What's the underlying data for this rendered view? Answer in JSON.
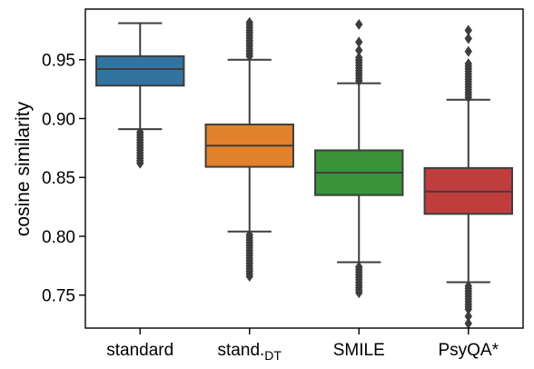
{
  "chart_data": {
    "type": "box",
    "ylabel": "cosine similarity",
    "xlabel": "",
    "ylim": [
      0.722,
      0.993
    ],
    "yticks": [
      0.75,
      0.8,
      0.85,
      0.9,
      0.95
    ],
    "ytick_labels": [
      "0.75",
      "0.80",
      "0.85",
      "0.90",
      "0.95"
    ],
    "grid": false,
    "categories": [
      {
        "label": "standard",
        "subscript": ""
      },
      {
        "label": "stand.",
        "subscript": "DT"
      },
      {
        "label": "SMILE",
        "subscript": ""
      },
      {
        "label": "PsyQA*",
        "subscript": ""
      }
    ],
    "boxes": [
      {
        "color": "#3274a1",
        "whisker_low": 0.891,
        "q1": 0.928,
        "median": 0.942,
        "q3": 0.953,
        "whisker_high": 0.981,
        "fliers_low_range": [
          0.862,
          0.889
        ],
        "fliers_high_range": null,
        "fliers_extra": []
      },
      {
        "color": "#e1812c",
        "whisker_low": 0.804,
        "q1": 0.859,
        "median": 0.877,
        "q3": 0.895,
        "whisker_high": 0.95,
        "fliers_low_range": [
          0.766,
          0.802
        ],
        "fliers_high_range": [
          0.953,
          0.983
        ],
        "fliers_extra": []
      },
      {
        "color": "#3a923a",
        "whisker_low": 0.778,
        "q1": 0.835,
        "median": 0.854,
        "q3": 0.873,
        "whisker_high": 0.93,
        "fliers_low_range": [
          0.752,
          0.776
        ],
        "fliers_high_range": [
          0.932,
          0.952
        ],
        "fliers_extra": [
          0.958,
          0.965,
          0.98
        ]
      },
      {
        "color": "#c03d3e",
        "whisker_low": 0.761,
        "q1": 0.819,
        "median": 0.838,
        "q3": 0.858,
        "whisker_high": 0.916,
        "fliers_low_range": [
          0.738,
          0.759
        ],
        "fliers_high_range": [
          0.918,
          0.948
        ],
        "fliers_extra": [
          0.726,
          0.732,
          0.957,
          0.968,
          0.975
        ]
      }
    ]
  }
}
